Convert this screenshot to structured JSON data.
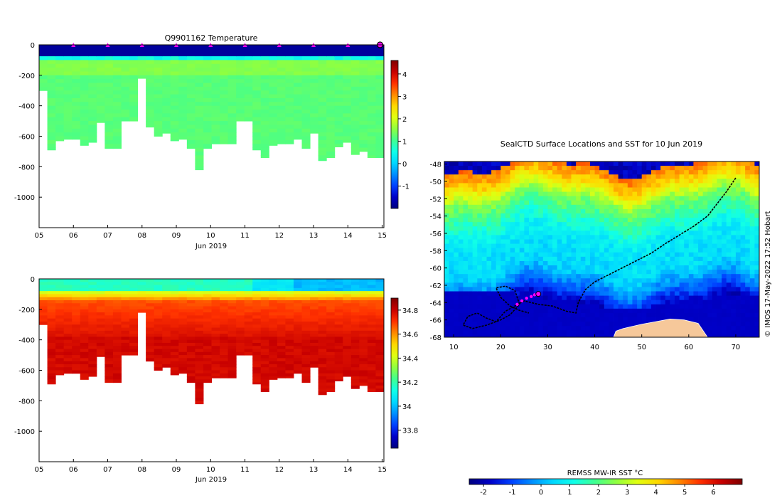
{
  "colors": {
    "jet": [
      "#00007f",
      "#0000c8",
      "#0040ff",
      "#0090ff",
      "#00d8ff",
      "#10ffe8",
      "#40ff90",
      "#90ff40",
      "#e0ff10",
      "#ffd800",
      "#ff8800",
      "#ff3000",
      "#c80000",
      "#7f0000"
    ],
    "float_marker": "#ff00ff",
    "land": "#f6c89a",
    "track": "#000000"
  },
  "chart_data": [
    {
      "id": "temperature-section",
      "type": "heatmap",
      "title": "Q9901162  Temperature",
      "xlabel": "Jun 2019",
      "x_tick_labels": [
        "05",
        "06",
        "07",
        "08",
        "09",
        "10",
        "11",
        "12",
        "13",
        "14",
        "15"
      ],
      "x_range": [
        5,
        15.05
      ],
      "y_range": [
        -1200,
        0
      ],
      "y_ticks": [
        0,
        -200,
        -400,
        -600,
        -800,
        -1000
      ],
      "y_tick_labels": [
        "0",
        "-200",
        "-400",
        "-600",
        "-800",
        "-1000"
      ],
      "colorbar": {
        "range": [
          -2,
          4.6
        ],
        "ticks": [
          -1,
          0,
          1,
          2,
          3,
          4
        ],
        "tick_labels": [
          "-1",
          "0",
          "1",
          "2",
          "3",
          "4"
        ]
      },
      "mixed_layer_value": -1.8,
      "surface_transition_depth": 80,
      "interior_values": [
        1.4,
        1.2
      ],
      "profile_max_depths": [
        300,
        690,
        630,
        620,
        620,
        660,
        640,
        510,
        680,
        680,
        500,
        500,
        220,
        540,
        600,
        580,
        630,
        620,
        680,
        820,
        680,
        650,
        650,
        650,
        500,
        500,
        690,
        740,
        660,
        650,
        650,
        620,
        680,
        580,
        760,
        740,
        670,
        640,
        720,
        700,
        740,
        740
      ],
      "surface_fix_days": [
        6,
        7,
        8,
        9,
        10,
        11,
        12,
        13,
        14,
        15
      ]
    },
    {
      "id": "salinity-section",
      "type": "heatmap",
      "title": "",
      "xlabel": "Jun 2019",
      "x_tick_labels": [
        "05",
        "06",
        "07",
        "08",
        "09",
        "10",
        "11",
        "12",
        "13",
        "14",
        "15"
      ],
      "x_range": [
        5,
        15.05
      ],
      "y_range": [
        -1200,
        0
      ],
      "y_ticks": [
        0,
        -200,
        -400,
        -600,
        -800,
        -1000
      ],
      "y_tick_labels": [
        "0",
        "-200",
        "-400",
        "-600",
        "-800",
        "-1000"
      ],
      "colorbar": {
        "range": [
          33.65,
          34.9
        ],
        "ticks": [
          33.8,
          34,
          34.2,
          34.4,
          34.6,
          34.8
        ],
        "tick_labels": [
          "33.8",
          "34",
          "34.2",
          "34.4",
          "34.6",
          "34.8"
        ]
      },
      "surface_value": 34.05,
      "deep_value": 34.78,
      "profile_max_depths": [
        300,
        690,
        630,
        620,
        620,
        660,
        640,
        510,
        680,
        680,
        500,
        500,
        220,
        540,
        600,
        580,
        630,
        620,
        680,
        820,
        680,
        650,
        650,
        650,
        500,
        500,
        690,
        740,
        660,
        650,
        650,
        620,
        680,
        580,
        760,
        740,
        670,
        640,
        720,
        700,
        740,
        740
      ]
    },
    {
      "id": "sst-map",
      "type": "heatmap",
      "title": "SealCTD Surface Locations and SST for 10 Jun 2019",
      "x_range": [
        8,
        75
      ],
      "y_range": [
        -68,
        -47.7
      ],
      "x_ticks": [
        10,
        20,
        30,
        40,
        50,
        60,
        70
      ],
      "x_tick_labels": [
        "10",
        "20",
        "30",
        "40",
        "50",
        "60",
        "70"
      ],
      "y_ticks": [
        -48,
        -50,
        -52,
        -54,
        -56,
        -58,
        -60,
        -62,
        -64,
        -66,
        -68
      ],
      "y_tick_labels": [
        "-48",
        "-50",
        "-52",
        "-54",
        "-56",
        "-58",
        "-60",
        "-62",
        "-64",
        "-66",
        "-68"
      ],
      "colorbar": {
        "label": "REMSS MW-IR SST °C",
        "range": [
          -2.5,
          7
        ],
        "ticks": [
          -2,
          -1,
          0,
          1,
          2,
          3,
          4,
          5,
          6
        ],
        "tick_labels": [
          "-2",
          "-1",
          "0",
          "1",
          "2",
          "3",
          "4",
          "5",
          "6"
        ]
      },
      "sst_zonal_profile": [
        {
          "lat": -48,
          "sst": 5.0
        },
        {
          "lat": -50,
          "sst": 4.0
        },
        {
          "lat": -52,
          "sst": 2.4
        },
        {
          "lat": -54,
          "sst": 1.6
        },
        {
          "lat": -56,
          "sst": 0.8
        },
        {
          "lat": -58,
          "sst": 0.6
        },
        {
          "lat": -60,
          "sst": 0.5
        },
        {
          "lat": -62,
          "sst": -0.5
        },
        {
          "lat": -64,
          "sst": -1.8
        },
        {
          "lat": -68,
          "sst": -1.9
        }
      ],
      "track": [
        [
          70,
          -49.6
        ],
        [
          68,
          -51.2
        ],
        [
          66,
          -52.6
        ],
        [
          64,
          -54.0
        ],
        [
          61,
          -55.2
        ],
        [
          58,
          -56.2
        ],
        [
          55,
          -57.2
        ],
        [
          52,
          -58.3
        ],
        [
          48,
          -59.4
        ],
        [
          44,
          -60.5
        ],
        [
          40,
          -61.6
        ],
        [
          38,
          -62.5
        ],
        [
          36.5,
          -64.0
        ],
        [
          36,
          -65.2
        ],
        [
          34,
          -65.0
        ],
        [
          31,
          -64.4
        ],
        [
          28,
          -64.2
        ],
        [
          25,
          -63.8
        ],
        [
          23,
          -64.4
        ],
        [
          21,
          -65.0
        ],
        [
          19,
          -66.2
        ],
        [
          17,
          -65.8
        ],
        [
          15,
          -65.2
        ],
        [
          13,
          -65.6
        ],
        [
          12,
          -66.6
        ],
        [
          14,
          -67.0
        ],
        [
          17,
          -66.6
        ],
        [
          20,
          -66.0
        ],
        [
          22,
          -65.4
        ],
        [
          24,
          -64.2
        ],
        [
          23,
          -62.6
        ],
        [
          21,
          -62.1
        ],
        [
          19,
          -62.3
        ],
        [
          20,
          -63.4
        ],
        [
          22,
          -64.4
        ],
        [
          24,
          -64.9
        ],
        [
          26,
          -65.2
        ]
      ],
      "recent_locations": [
        [
          23.5,
          -64.2
        ],
        [
          24.5,
          -63.8
        ],
        [
          25.5,
          -63.5
        ],
        [
          26.5,
          -63.3
        ],
        [
          27.2,
          -63.1
        ]
      ],
      "latest_location": [
        28,
        -63.0
      ],
      "antarctica": [
        [
          44,
          -68
        ],
        [
          44.5,
          -67.3
        ],
        [
          46,
          -67.0
        ],
        [
          50,
          -66.5
        ],
        [
          53,
          -66.2
        ],
        [
          56,
          -65.9
        ],
        [
          59,
          -66.0
        ],
        [
          62,
          -66.4
        ],
        [
          63,
          -67.2
        ],
        [
          64,
          -68
        ]
      ]
    }
  ],
  "watermark": "© IMOS 17-May-2022 17:52 Hobart"
}
